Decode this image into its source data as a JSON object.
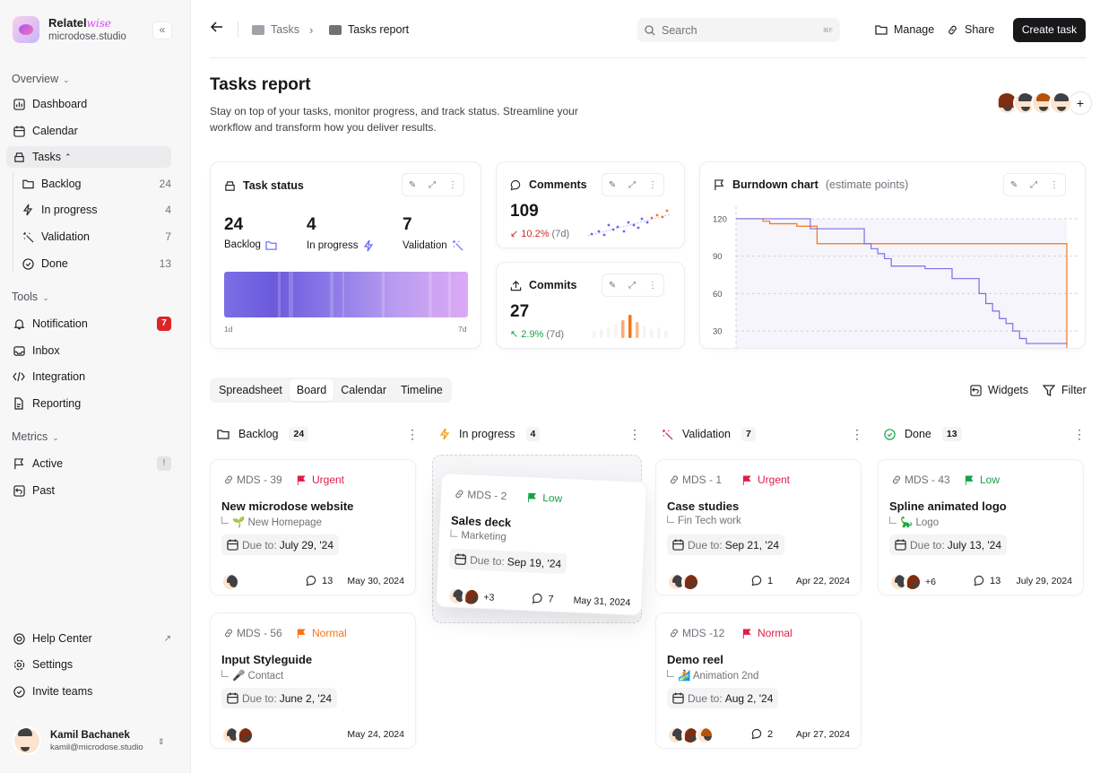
{
  "brand": {
    "name": "Relatel",
    "name_accent": "wise",
    "workspace": "microdose.studio"
  },
  "sidebar": {
    "overview_label": "Overview",
    "overview_items": [
      {
        "label": "Dashboard"
      },
      {
        "label": "Calendar"
      },
      {
        "label": "Tasks"
      }
    ],
    "task_subitems": [
      {
        "label": "Backlog",
        "count": "24"
      },
      {
        "label": "In progress",
        "count": "4"
      },
      {
        "label": "Validation",
        "count": "7"
      },
      {
        "label": "Done",
        "count": "13"
      }
    ],
    "tools_label": "Tools",
    "tools_items": [
      {
        "label": "Notification",
        "badge": "7"
      },
      {
        "label": "Inbox"
      },
      {
        "label": "Integration"
      },
      {
        "label": "Reporting"
      }
    ],
    "metrics_label": "Metrics",
    "metrics_items": [
      {
        "label": "Active",
        "badge": "!"
      },
      {
        "label": "Past"
      }
    ],
    "bottom_items": [
      {
        "label": "Help Center",
        "arrow": "↗"
      },
      {
        "label": "Settings"
      },
      {
        "label": "Invite teams"
      }
    ],
    "user": {
      "name": "Kamil Bachanek",
      "email": "kamil@microdose.studio"
    }
  },
  "topbar": {
    "crumb_parent": "Tasks",
    "crumb_current": "Tasks report",
    "search_placeholder": "Search",
    "search_kbd": "⌘F",
    "manage": "Manage",
    "share": "Share",
    "create": "Create task"
  },
  "page": {
    "title": "Tasks report",
    "description": "Stay on top of your tasks, monitor progress, and track status. Streamline your workflow and transform how you deliver results.",
    "add_member": "+"
  },
  "task_status": {
    "title": "Task status",
    "stats": [
      {
        "value": "24",
        "label": "Backlog"
      },
      {
        "value": "4",
        "label": "In progress"
      },
      {
        "value": "7",
        "label": "Validation"
      }
    ],
    "axis_start": "1d",
    "axis_end": "7d"
  },
  "comments": {
    "title": "Comments",
    "value": "109",
    "delta": "10.2%",
    "period": "(7d)",
    "direction": "down",
    "color": "#dc2626"
  },
  "commits": {
    "title": "Commits",
    "value": "27",
    "delta": "2.9%",
    "period": "(7d)",
    "direction": "up",
    "color": "#16a34a"
  },
  "chart_data": {
    "type": "line",
    "title": "Burndown chart",
    "subtitle": "(estimate points)",
    "y_ticks": [
      "120",
      "90",
      "60",
      "30"
    ],
    "ylim": [
      15,
      130
    ],
    "series": [
      {
        "name": "estimate",
        "color": "#f97316",
        "values": [
          120,
          120,
          120,
          120,
          118,
          116,
          116,
          116,
          116,
          114,
          114,
          114,
          100,
          100,
          100,
          100,
          100,
          100,
          100,
          100,
          100,
          100,
          100,
          100,
          100,
          100,
          100,
          100,
          100,
          100,
          100,
          100,
          100,
          100,
          100,
          100,
          100,
          100,
          100,
          100,
          100,
          100,
          100,
          100,
          100,
          100,
          100,
          100,
          100,
          15
        ]
      },
      {
        "name": "actual",
        "color": "#7c6ee6",
        "values": [
          120,
          120,
          120,
          120,
          120,
          120,
          120,
          120,
          120,
          120,
          120,
          112,
          112,
          112,
          112,
          112,
          112,
          112,
          112,
          100,
          96,
          92,
          88,
          82,
          82,
          82,
          82,
          82,
          80,
          80,
          80,
          80,
          72,
          72,
          72,
          72,
          60,
          52,
          46,
          40,
          36,
          30,
          24,
          20,
          20,
          20,
          20,
          20,
          20,
          20
        ]
      }
    ]
  },
  "view_tabs": [
    {
      "label": "Spreadsheet"
    },
    {
      "label": "Board"
    },
    {
      "label": "Calendar"
    },
    {
      "label": "Timeline"
    }
  ],
  "actions": {
    "widgets": "Widgets",
    "filter": "Filter"
  },
  "columns": [
    {
      "title": "Backlog",
      "count": "24"
    },
    {
      "title": "In progress",
      "count": "4"
    },
    {
      "title": "Validation",
      "count": "7"
    },
    {
      "title": "Done",
      "count": "13"
    }
  ],
  "tasks": [
    {
      "id": "MDS - 39",
      "priority": "Urgent",
      "pcolor": "#e11d48",
      "title": "New microdose website",
      "sub": "🌱 New Homepage",
      "due_label": "Due to:",
      "due": "July 29, '24",
      "comments": "13",
      "date": "May 30, 2024",
      "more": ""
    },
    {
      "id": "MDS - 56",
      "priority": "Normal",
      "pcolor": "#f97316",
      "title": "Input Styleguide",
      "sub": "🎤 Contact",
      "due_label": "Due to:",
      "due": "June 2, '24",
      "comments": "",
      "date": "May 24, 2024",
      "more": ""
    },
    {
      "id": "MDS - 2",
      "priority": "Low",
      "pcolor": "#16a34a",
      "title": "Sales deck",
      "sub": "Marketing",
      "due_label": "Due to:",
      "due": "Sep 19, '24",
      "comments": "7",
      "date": "May 31, 2024",
      "more": "+3"
    },
    {
      "id": "MDS - 1",
      "priority": "Urgent",
      "pcolor": "#e11d48",
      "title": "Case studies",
      "sub": "Fin Tech work",
      "due_label": "Due to:",
      "due": "Sep 21, '24",
      "comments": "1",
      "date": "Apr 22, 2024",
      "more": ""
    },
    {
      "id": "MDS -12",
      "priority": "Normal",
      "pcolor": "#e11d48",
      "title": "Demo reel",
      "sub": "🏄 Animation 2nd",
      "due_label": "Due to:",
      "due": "Aug 2, '24",
      "comments": "2",
      "date": "Apr 27, 2024",
      "more": ""
    },
    {
      "id": "MDS - 43",
      "priority": "Low",
      "pcolor": "#16a34a",
      "title": "Spline animated logo",
      "sub": "🦕 Logo",
      "due_label": "Due to:",
      "due": "July 13, '24",
      "comments": "13",
      "date": "July 29, 2024",
      "more": "+6"
    }
  ]
}
